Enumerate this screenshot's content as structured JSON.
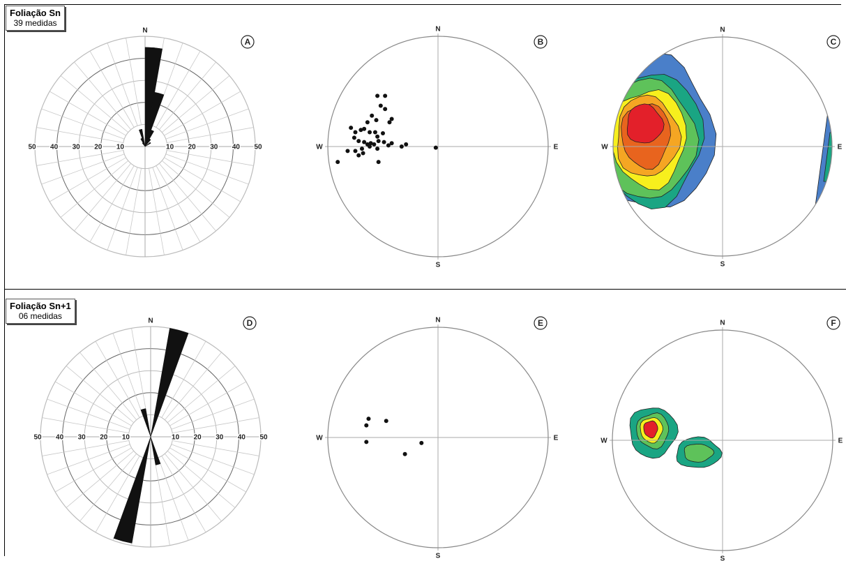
{
  "section_sn": {
    "title": "Foliação Sn",
    "count": "39 medidas"
  },
  "section_sn1": {
    "title": "Foliação Sn+1",
    "count": "06 medidas"
  },
  "panel_letters": [
    "A",
    "B",
    "C",
    "D",
    "E",
    "F"
  ],
  "compass": {
    "n": "N",
    "s": "S",
    "e": "E",
    "w": "W"
  },
  "rose_scale_labels": [
    "50",
    "40",
    "30",
    "20",
    "10",
    "10",
    "20",
    "30",
    "40",
    "50"
  ],
  "contour_colors": [
    "#4a7fc9",
    "#1aa583",
    "#5ec25a",
    "#f7ef1d",
    "#f5a623",
    "#e8641e",
    "#e3202a"
  ],
  "chart_data": [
    {
      "panel": "A",
      "type": "rose",
      "scale_max": 50,
      "petals": [
        {
          "azimuth": 5,
          "value": 45
        },
        {
          "azimuth": 15,
          "value": 25
        },
        {
          "azimuth": 25,
          "value": 8
        },
        {
          "azimuth": 35,
          "value": 4
        },
        {
          "azimuth": 55,
          "value": 3
        },
        {
          "azimuth": 345,
          "value": 8
        },
        {
          "azimuth": 335,
          "value": 4
        },
        {
          "azimuth": 325,
          "value": 2
        }
      ]
    },
    {
      "panel": "B",
      "type": "scatter",
      "plot": "stereonet poles",
      "xlim": [
        -1,
        1
      ],
      "ylim": [
        -1,
        1
      ],
      "points": [
        [
          -0.55,
          0.46
        ],
        [
          -0.48,
          0.46
        ],
        [
          -0.52,
          0.37
        ],
        [
          -0.6,
          0.28
        ],
        [
          -0.64,
          0.22
        ],
        [
          -0.48,
          0.34
        ],
        [
          -0.42,
          0.25
        ],
        [
          -0.44,
          0.22
        ],
        [
          -0.56,
          0.24
        ],
        [
          -0.67,
          0.16
        ],
        [
          -0.79,
          0.17
        ],
        [
          -0.75,
          0.13
        ],
        [
          -0.7,
          0.15
        ],
        [
          -0.62,
          0.13
        ],
        [
          -0.57,
          0.13
        ],
        [
          -0.5,
          0.12
        ],
        [
          -0.55,
          0.09
        ],
        [
          -0.76,
          0.08
        ],
        [
          -0.72,
          0.05
        ],
        [
          -0.67,
          0.04
        ],
        [
          -0.64,
          0.02
        ],
        [
          -0.61,
          0.03
        ],
        [
          -0.58,
          0.02
        ],
        [
          -0.54,
          0.05
        ],
        [
          -0.49,
          0.04
        ],
        [
          -0.45,
          0.01
        ],
        [
          -0.69,
          -0.02
        ],
        [
          -0.62,
          0.0
        ],
        [
          -0.55,
          -0.02
        ],
        [
          -0.42,
          0.03
        ],
        [
          -0.33,
          0.0
        ],
        [
          -0.29,
          0.02
        ],
        [
          -0.75,
          -0.04
        ],
        [
          -0.68,
          -0.06
        ],
        [
          -0.72,
          -0.08
        ],
        [
          -0.82,
          -0.04
        ],
        [
          -0.91,
          -0.14
        ],
        [
          -0.54,
          -0.14
        ],
        [
          -0.02,
          -0.01
        ]
      ]
    },
    {
      "panel": "C",
      "type": "heatmap",
      "plot": "density contours",
      "cells": [
        {
          "x": -0.67,
          "y": 0.13,
          "level": 7
        },
        {
          "x": 1.0,
          "y": -0.1,
          "level": 2
        }
      ]
    },
    {
      "panel": "D",
      "type": "rose",
      "scale_max": 50,
      "petals": [
        {
          "azimuth": 15,
          "value": 50
        },
        {
          "azimuth": 165,
          "value": 13
        },
        {
          "azimuth": 195,
          "value": 49
        },
        {
          "azimuth": 345,
          "value": 13
        }
      ]
    },
    {
      "panel": "E",
      "type": "scatter",
      "plot": "stereonet poles",
      "xlim": [
        -1,
        1
      ],
      "ylim": [
        -1,
        1
      ],
      "points": [
        [
          -0.63,
          0.17
        ],
        [
          -0.65,
          0.11
        ],
        [
          -0.47,
          0.15
        ],
        [
          -0.65,
          -0.04
        ],
        [
          -0.15,
          -0.05
        ],
        [
          -0.3,
          -0.15
        ]
      ]
    },
    {
      "panel": "F",
      "type": "heatmap",
      "plot": "density contours",
      "cells": [
        {
          "x": -0.64,
          "y": 0.12,
          "level": 7
        },
        {
          "x": -0.22,
          "y": -0.12,
          "level": 4
        }
      ]
    }
  ]
}
